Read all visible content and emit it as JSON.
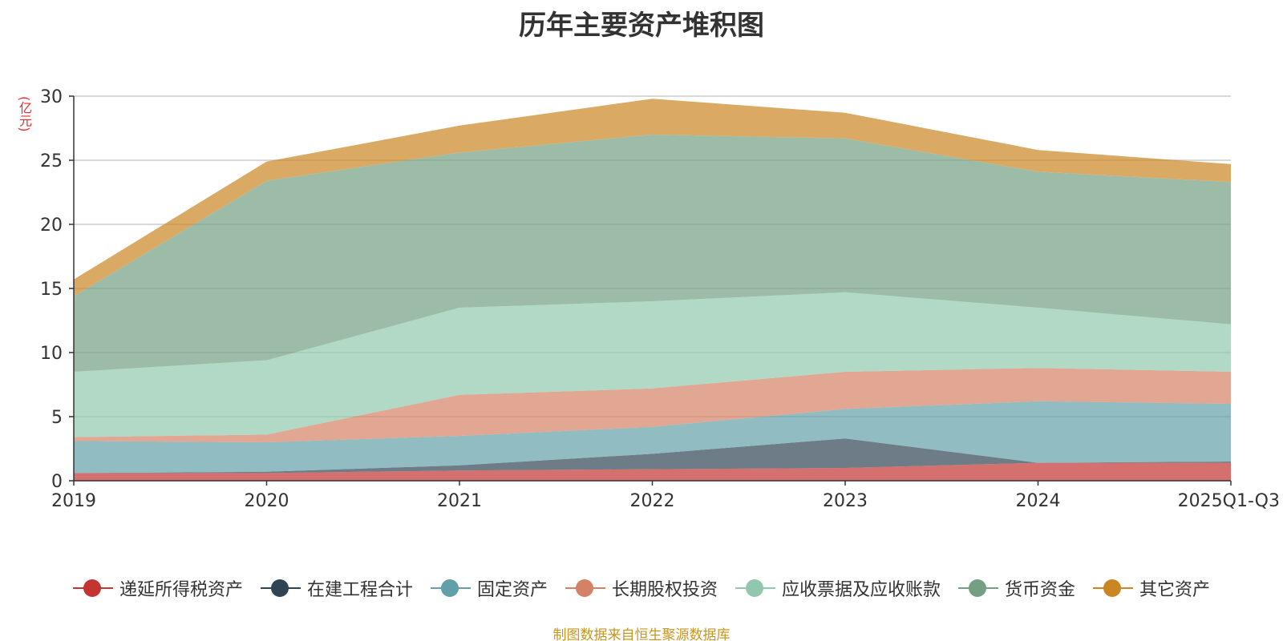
{
  "chart_data": {
    "type": "area",
    "stacked": true,
    "title": "历年主要资产堆积图",
    "y_unit": "(亿元)",
    "source": "制图数据来自恒生聚源数据库",
    "categories": [
      "2019",
      "2020",
      "2021",
      "2022",
      "2023",
      "2024",
      "2025Q1-Q3"
    ],
    "ylim": [
      0,
      30
    ],
    "yticks": [
      "0",
      "5",
      "10",
      "15",
      "20",
      "25",
      "30"
    ],
    "grid": true,
    "legend_position": "bottom",
    "series": [
      {
        "name": "递延所得税资产",
        "color": "#c23531",
        "values": [
          0.6,
          0.6,
          0.8,
          0.9,
          1.0,
          1.4,
          1.4
        ]
      },
      {
        "name": "在建工程合计",
        "color": "#2f4554",
        "values": [
          0.0,
          0.1,
          0.4,
          1.2,
          2.3,
          0.0,
          0.1
        ]
      },
      {
        "name": "固定资产",
        "color": "#61a0a8",
        "values": [
          2.5,
          2.3,
          2.3,
          2.1,
          2.3,
          4.8,
          4.5
        ]
      },
      {
        "name": "长期股权投资",
        "color": "#d48265",
        "values": [
          0.3,
          0.6,
          3.2,
          3.0,
          2.9,
          2.6,
          2.5
        ]
      },
      {
        "name": "应收票据及应收账款",
        "color": "#91c7ae",
        "values": [
          5.1,
          5.8,
          6.8,
          6.8,
          6.2,
          4.7,
          3.7
        ]
      },
      {
        "name": "货币资金",
        "color": "#749f83",
        "values": [
          5.9,
          14.0,
          12.1,
          13.0,
          12.0,
          10.6,
          11.1
        ]
      },
      {
        "name": "其它资产",
        "color": "#ca8622",
        "values": [
          1.3,
          1.5,
          2.1,
          2.8,
          2.0,
          1.7,
          1.4
        ]
      }
    ]
  }
}
